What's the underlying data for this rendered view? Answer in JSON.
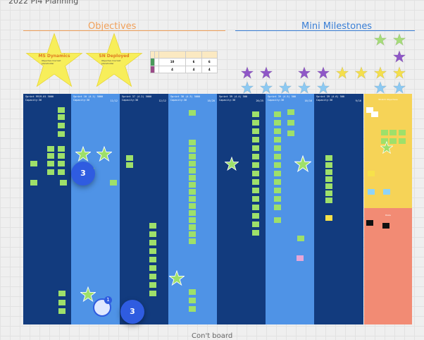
{
  "board": {
    "title": "2022 PI4 Planning"
  },
  "sections": {
    "objectives": "Objectives",
    "milestones": "Mini Milestones"
  },
  "objective_stars": [
    {
      "title": "MS Dynamics",
      "text": "Objective line text placeholder"
    },
    {
      "title": "SN Deployed",
      "text": "Objective line text placeholder"
    }
  ],
  "summary_table": {
    "headers": [
      "",
      "",
      "",
      "",
      ""
    ],
    "rows": [
      {
        "label": "",
        "values": [
          "",
          "10",
          "6",
          "6"
        ]
      },
      {
        "label": "",
        "values": [
          "",
          "4",
          "4",
          "4"
        ]
      }
    ]
  },
  "sprints": [
    {
      "title": "Sprint 9919.01 5000",
      "capacity": "Capacity:36",
      "count": ""
    },
    {
      "title": "Sprint 10 (4.1) 5000",
      "capacity": "Capacity:36",
      "count": "11/12"
    },
    {
      "title": "Sprint 37 (4.2) 5000",
      "capacity": "Capacity:36",
      "count": "12/12"
    },
    {
      "title": "Sprint 38 (4.3) 5000",
      "capacity": "Capacity:36",
      "count": "16/20"
    },
    {
      "title": "Sprint 39 (4.4) 500",
      "capacity": "Capacity:36",
      "count": "26/25"
    },
    {
      "title": "Sprint 39 (4.5) 500",
      "capacity": "Capacity:36",
      "count": "16/16"
    },
    {
      "title": "Sprint 39 (4.6) 500",
      "capacity": "Capacity:36",
      "count": "9/16"
    }
  ],
  "side_panels": {
    "stretch": "Stretch Objectives",
    "risks": "Risks"
  },
  "collaborators": {
    "bubble_a": "3",
    "bubble_b": "3",
    "badge": "1"
  },
  "footer": {
    "text": "Con't board"
  },
  "colors": {
    "sprint_dark": "#123b7e",
    "sprint_light": "#4f93e6",
    "objective_orange": "#f0a05a",
    "milestone_blue": "#3a7fd6"
  },
  "icons": [
    "star-icon",
    "avatar-icon"
  ]
}
